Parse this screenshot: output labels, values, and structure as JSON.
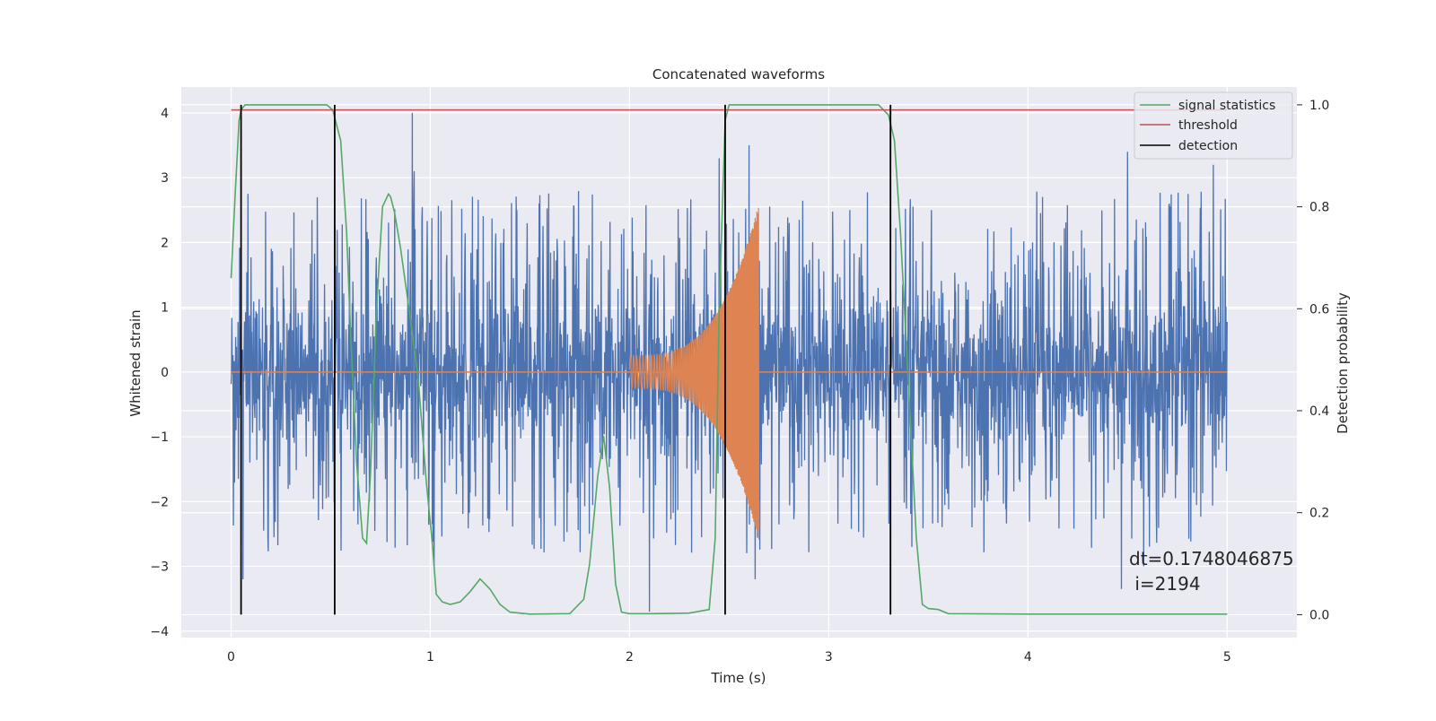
{
  "chart_data": {
    "type": "line",
    "title": "Concatenated waveforms",
    "xlabel": "Time (s)",
    "ylabel": "Whitened strain",
    "y2label": "Detection probability",
    "xlim": [
      -0.25,
      5.35
    ],
    "ylim": [
      -4.1,
      4.4
    ],
    "y2lim": [
      -0.045,
      1.035
    ],
    "x_ticks": [
      0,
      1,
      2,
      3,
      4,
      5
    ],
    "y_ticks": [
      -4,
      -3,
      -2,
      -1,
      0,
      1,
      2,
      3,
      4
    ],
    "y2_ticks": [
      0.0,
      0.2,
      0.4,
      0.6,
      0.8,
      1.0
    ],
    "x_tick_labels": [
      "0",
      "1",
      "2",
      "3",
      "4",
      "5"
    ],
    "y_tick_labels": [
      "−4",
      "−3",
      "−2",
      "−1",
      "0",
      "1",
      "2",
      "3",
      "4"
    ],
    "y2_tick_labels": [
      "0.0",
      "0.2",
      "0.4",
      "0.6",
      "0.8",
      "1.0"
    ],
    "grid": true,
    "legend_position": "top-right",
    "legend": [
      {
        "label": "signal statistics",
        "color": "#55a868"
      },
      {
        "label": "threshold",
        "color": "#c44e52"
      },
      {
        "label": "detection",
        "color": "#000000"
      }
    ],
    "noise_series": {
      "color": "#4c72b0",
      "x_range": [
        0,
        5
      ],
      "typical_amplitude": 0.6,
      "spike_peaks": [
        {
          "x": 0.91,
          "y": 4.0
        },
        {
          "x": 0.92,
          "y": 3.1
        },
        {
          "x": 2.45,
          "y": 3.3
        },
        {
          "x": 2.6,
          "y": 3.5
        },
        {
          "x": 4.5,
          "y": 3.4
        },
        {
          "x": 4.93,
          "y": 3.2
        },
        {
          "x": 2.1,
          "y": -3.7
        },
        {
          "x": 0.06,
          "y": -3.2
        },
        {
          "x": 1.02,
          "y": -3.0
        },
        {
          "x": 4.47,
          "y": -3.35
        },
        {
          "x": 4.58,
          "y": -3.0
        },
        {
          "x": 2.63,
          "y": -3.2
        }
      ]
    },
    "chirp_series": {
      "color": "#dd8452",
      "x_range": [
        2.0,
        2.65
      ],
      "amplitude_start": 0.25,
      "amplitude_peak": 2.6,
      "zero_line_x_range": [
        0,
        5
      ]
    },
    "signal_statistics": {
      "color": "#55a868",
      "axis": "right",
      "x": [
        0.0,
        0.02,
        0.04,
        0.05,
        0.07,
        0.1,
        0.3,
        0.48,
        0.51,
        0.55,
        0.58,
        0.6,
        0.63,
        0.66,
        0.68,
        0.7,
        0.73,
        0.76,
        0.79,
        0.8,
        0.82,
        0.85,
        0.9,
        0.94,
        0.98,
        1.01,
        1.03,
        1.06,
        1.1,
        1.15,
        1.2,
        1.25,
        1.3,
        1.35,
        1.4,
        1.5,
        1.7,
        1.77,
        1.8,
        1.84,
        1.87,
        1.9,
        1.93,
        1.96,
        2.0,
        2.1,
        2.3,
        2.4,
        2.43,
        2.45,
        2.48,
        2.5,
        2.6,
        3.25,
        3.3,
        3.33,
        3.36,
        3.4,
        3.44,
        3.47,
        3.5,
        3.55,
        3.6,
        4.0,
        5.0
      ],
      "y": [
        0.66,
        0.82,
        0.97,
        0.99,
        1.0,
        1.0,
        1.0,
        1.0,
        0.99,
        0.93,
        0.75,
        0.55,
        0.3,
        0.15,
        0.14,
        0.28,
        0.6,
        0.8,
        0.825,
        0.82,
        0.79,
        0.72,
        0.58,
        0.46,
        0.26,
        0.14,
        0.04,
        0.025,
        0.02,
        0.025,
        0.045,
        0.07,
        0.05,
        0.02,
        0.005,
        0.001,
        0.002,
        0.03,
        0.1,
        0.27,
        0.35,
        0.25,
        0.06,
        0.005,
        0.002,
        0.002,
        0.003,
        0.01,
        0.15,
        0.6,
        0.97,
        1.0,
        1.0,
        1.0,
        0.98,
        0.93,
        0.75,
        0.45,
        0.15,
        0.02,
        0.012,
        0.01,
        0.002,
        0.001,
        0.001
      ]
    },
    "threshold": {
      "value": 0.99,
      "x_range": [
        0,
        5
      ],
      "color": "#c44e52",
      "axis": "right"
    },
    "detections": {
      "x": [
        0.05,
        0.52,
        2.48,
        3.31
      ],
      "y_range": [
        0,
        1.0
      ],
      "color": "#000000",
      "axis": "right"
    },
    "annotation": [
      "dt=0.1748046875",
      " i=2194"
    ]
  }
}
